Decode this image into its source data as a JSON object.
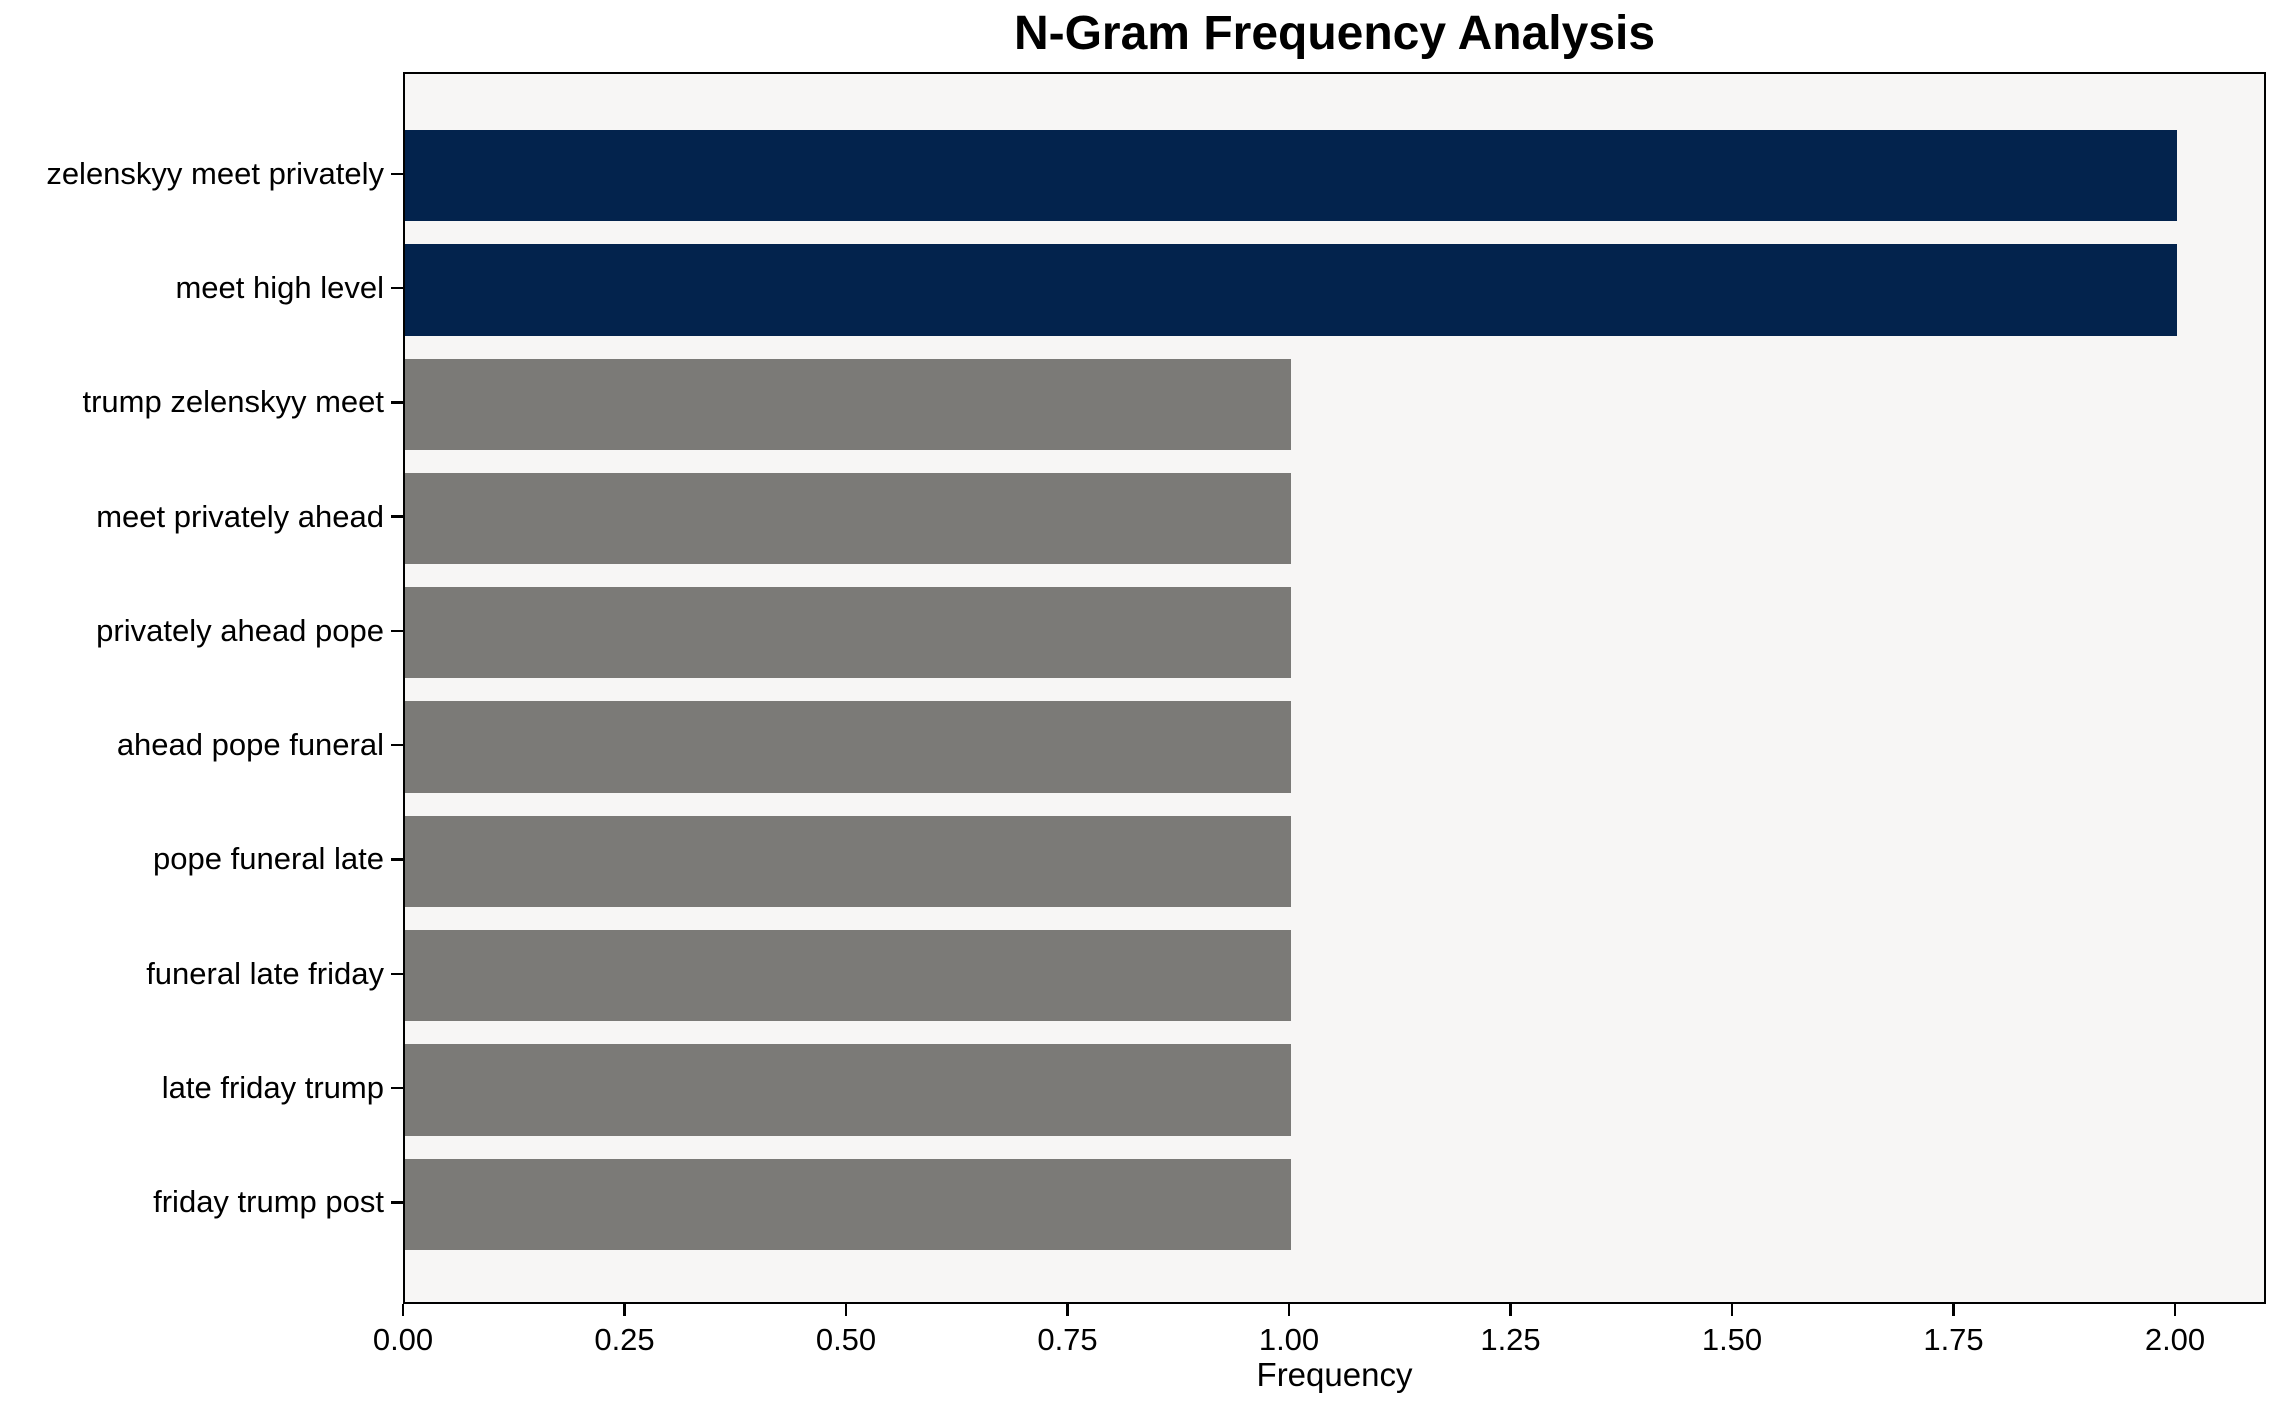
{
  "chart_data": {
    "type": "bar",
    "orientation": "horizontal",
    "title": "N-Gram Frequency Analysis",
    "xlabel": "Frequency",
    "ylabel": "",
    "categories": [
      "zelenskyy meet privately",
      "meet high level",
      "trump zelenskyy meet",
      "meet privately ahead",
      "privately ahead pope",
      "ahead pope funeral",
      "pope funeral late",
      "funeral late friday",
      "late friday trump",
      "friday trump post"
    ],
    "values": [
      2,
      2,
      1,
      1,
      1,
      1,
      1,
      1,
      1,
      1
    ],
    "bar_colors": [
      "#03234D",
      "#03234D",
      "#7B7A77",
      "#7B7A77",
      "#7B7A77",
      "#7B7A77",
      "#7B7A77",
      "#7B7A77",
      "#7B7A77",
      "#7B7A77"
    ],
    "x_ticks": [
      0,
      0.25,
      0.5,
      0.75,
      1.0,
      1.25,
      1.5,
      1.75,
      2.0
    ],
    "x_tick_labels": [
      "0.00",
      "0.25",
      "0.50",
      "0.75",
      "1.00",
      "1.25",
      "1.50",
      "1.75",
      "2.00"
    ],
    "xlim": [
      0,
      2.103
    ],
    "grid": false,
    "legend": null,
    "colors": {
      "highlight": "#03234D",
      "default": "#7B7A77",
      "plot_background": "#F7F6F5",
      "figure_background": "#ffffff",
      "spine": "#000000",
      "text": "#000000"
    }
  }
}
